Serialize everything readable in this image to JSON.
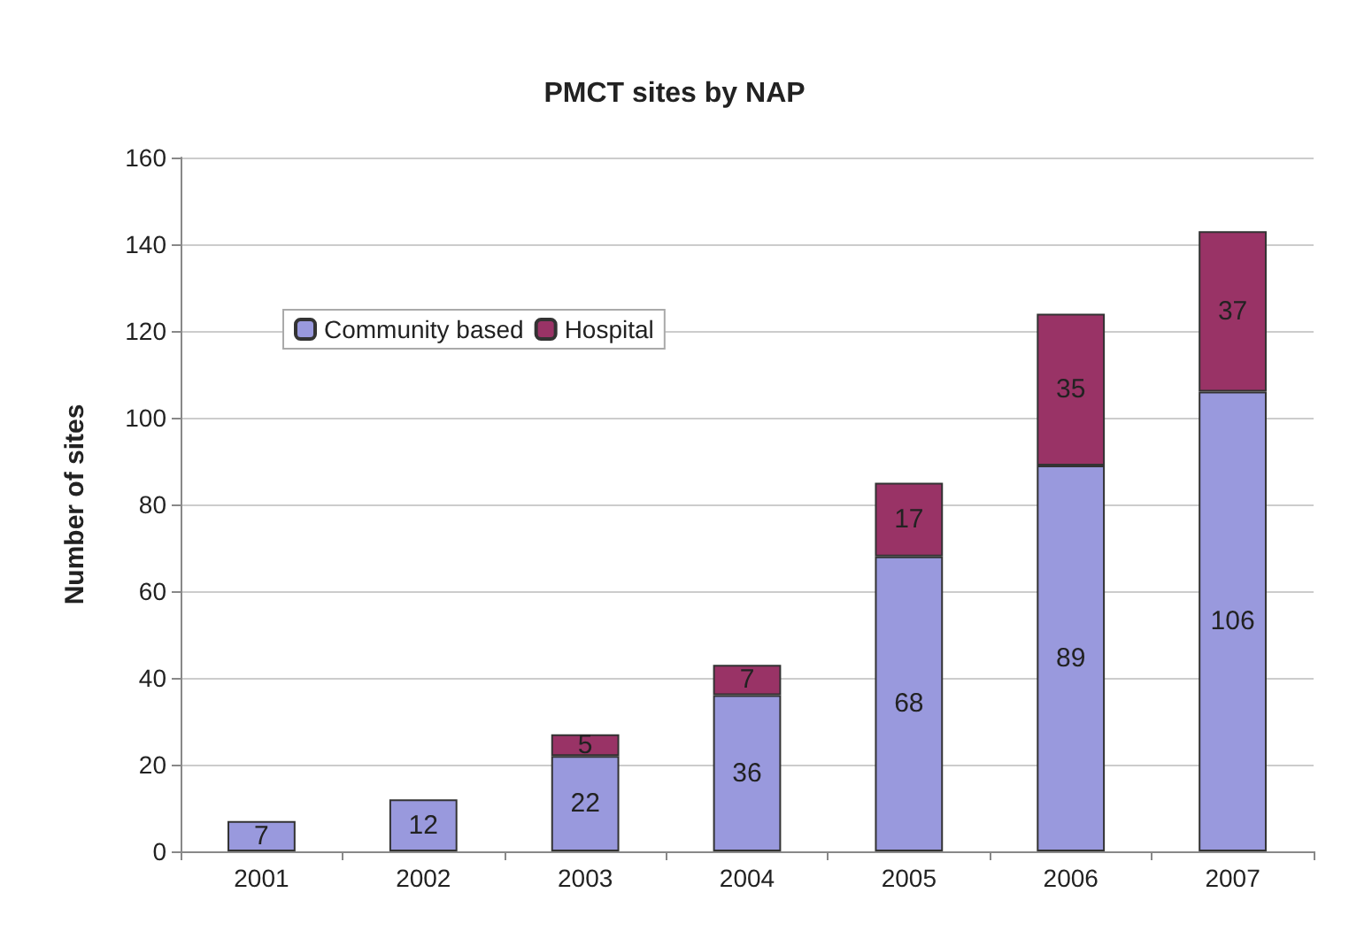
{
  "chart_data": {
    "type": "bar",
    "title": "PMCT sites by NAP",
    "ylabel": "Number of sites",
    "categories": [
      "2001",
      "2002",
      "2003",
      "2004",
      "2005",
      "2006",
      "2007"
    ],
    "stacked": true,
    "series": [
      {
        "name": "Community based",
        "color": "#9999dd",
        "values": [
          7,
          12,
          22,
          36,
          68,
          89,
          106
        ]
      },
      {
        "name": "Hospital",
        "color": "#993366",
        "values": [
          null,
          null,
          5,
          7,
          17,
          35,
          37
        ]
      }
    ],
    "ylim": [
      0,
      160
    ],
    "yticks": [
      0,
      20,
      40,
      60,
      80,
      100,
      120,
      140,
      160
    ],
    "grid": "y",
    "legend": "top left",
    "data_labels": true
  }
}
